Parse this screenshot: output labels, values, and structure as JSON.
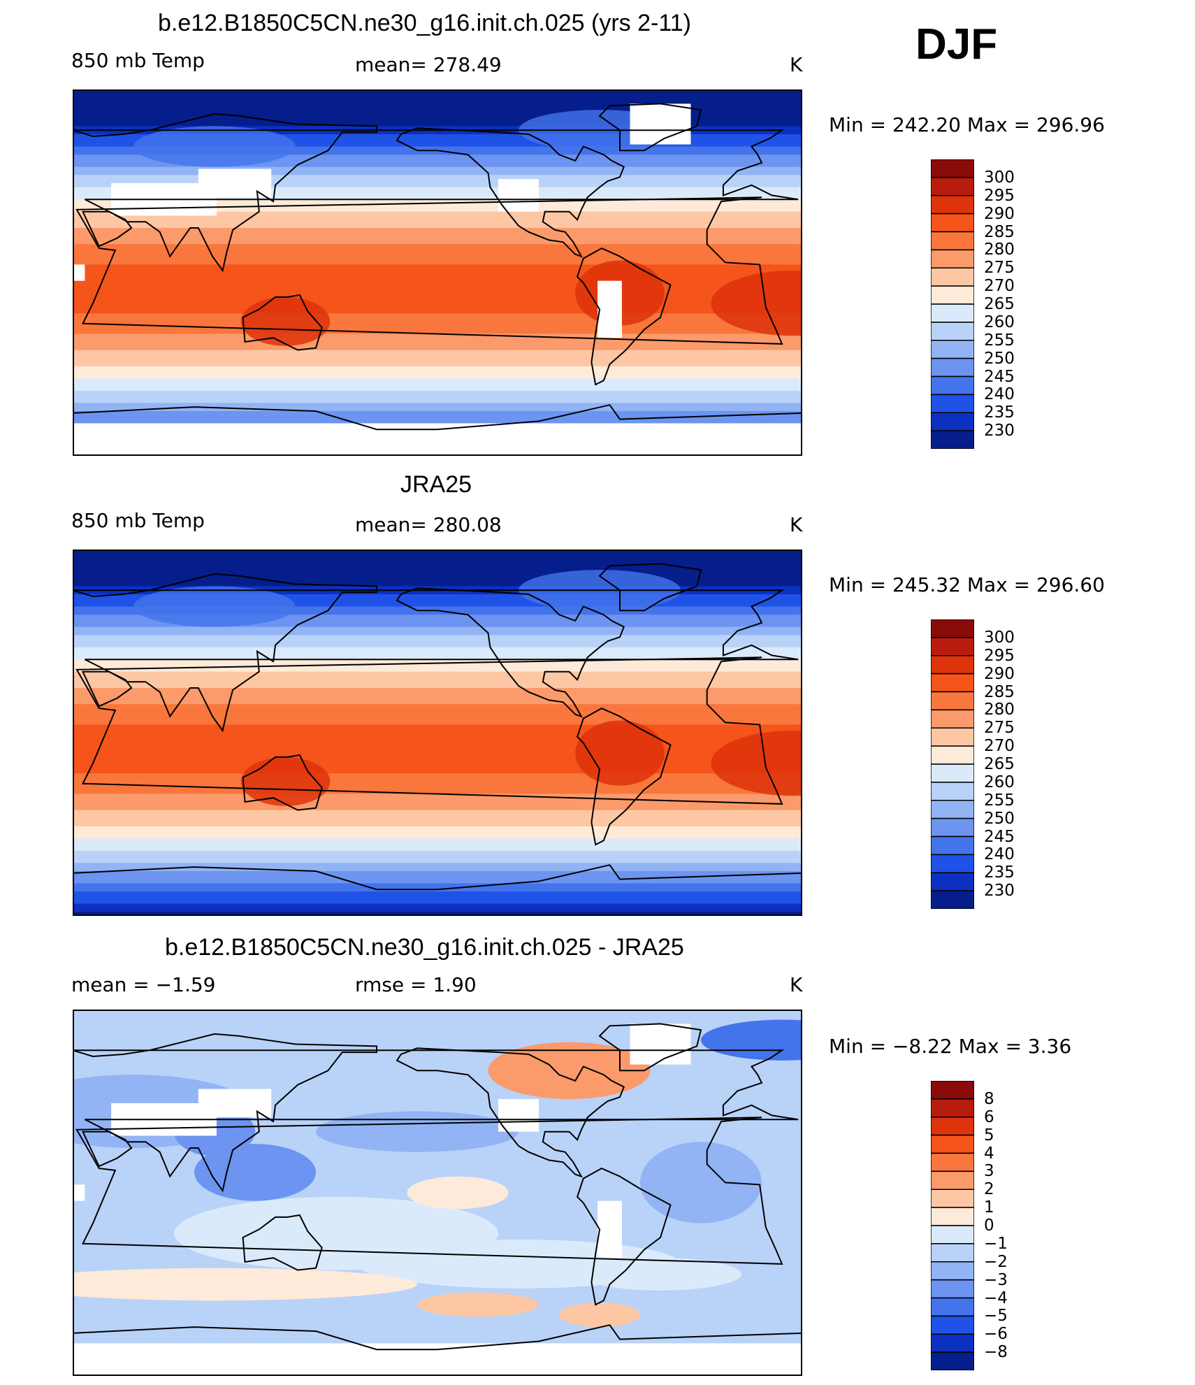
{
  "season": "DJF",
  "panels": [
    {
      "title": "b.e12.B1850C5CN.ne30_g16.init.ch.025 (yrs 2-11)",
      "left_label": "850 mb Temp",
      "center_label": "mean=  278.49",
      "units": "K",
      "minmax": "Min  =  242.20  Max  =  296.96",
      "colorbar": {
        "labels": [
          "300",
          "295",
          "290",
          "285",
          "280",
          "275",
          "270",
          "265",
          "260",
          "255",
          "250",
          "245",
          "240",
          "235",
          "230"
        ],
        "colors": [
          "#8b0a0a",
          "#b71c0c",
          "#de330b",
          "#f5541b",
          "#f9773c",
          "#fb9a6a",
          "#fdc7a4",
          "#feead8",
          "#dbeafb",
          "#b9d2f8",
          "#92b4f5",
          "#6c94f0",
          "#4474ec",
          "#1f52e6",
          "#0c30c0",
          "#061e8c"
        ]
      },
      "field": "model"
    },
    {
      "title": "JRA25",
      "left_label": "850 mb Temp",
      "center_label": "mean=  280.08",
      "units": "K",
      "minmax": "Min  =  245.32  Max  =  296.60",
      "colorbar": {
        "labels": [
          "300",
          "295",
          "290",
          "285",
          "280",
          "275",
          "270",
          "265",
          "260",
          "255",
          "250",
          "245",
          "240",
          "235",
          "230"
        ],
        "colors": [
          "#8b0a0a",
          "#b71c0c",
          "#de330b",
          "#f5541b",
          "#f9773c",
          "#fb9a6a",
          "#fdc7a4",
          "#feead8",
          "#dbeafb",
          "#b9d2f8",
          "#92b4f5",
          "#6c94f0",
          "#4474ec",
          "#1f52e6",
          "#0c30c0",
          "#061e8c"
        ]
      },
      "field": "obs"
    },
    {
      "title": "b.e12.B1850C5CN.ne30_g16.init.ch.025 - JRA25",
      "left_label": "mean =    −1.59",
      "center_label": "rmse =     1.90",
      "units": "K",
      "minmax": "Min  =    −8.22  Max  =     3.36",
      "colorbar": {
        "labels": [
          "8",
          "6",
          "5",
          "4",
          "3",
          "2",
          "1",
          "0",
          "−1",
          "−2",
          "−3",
          "−4",
          "−5",
          "−6",
          "−8"
        ],
        "colors": [
          "#8b0a0a",
          "#b71c0c",
          "#de330b",
          "#f5541b",
          "#f9773c",
          "#fb9a6a",
          "#fdc7a4",
          "#feead8",
          "#dbeafb",
          "#b9d2f8",
          "#92b4f5",
          "#6c94f0",
          "#4474ec",
          "#1f52e6",
          "#0c30c0",
          "#061e8c"
        ]
      },
      "field": "diff"
    }
  ]
}
